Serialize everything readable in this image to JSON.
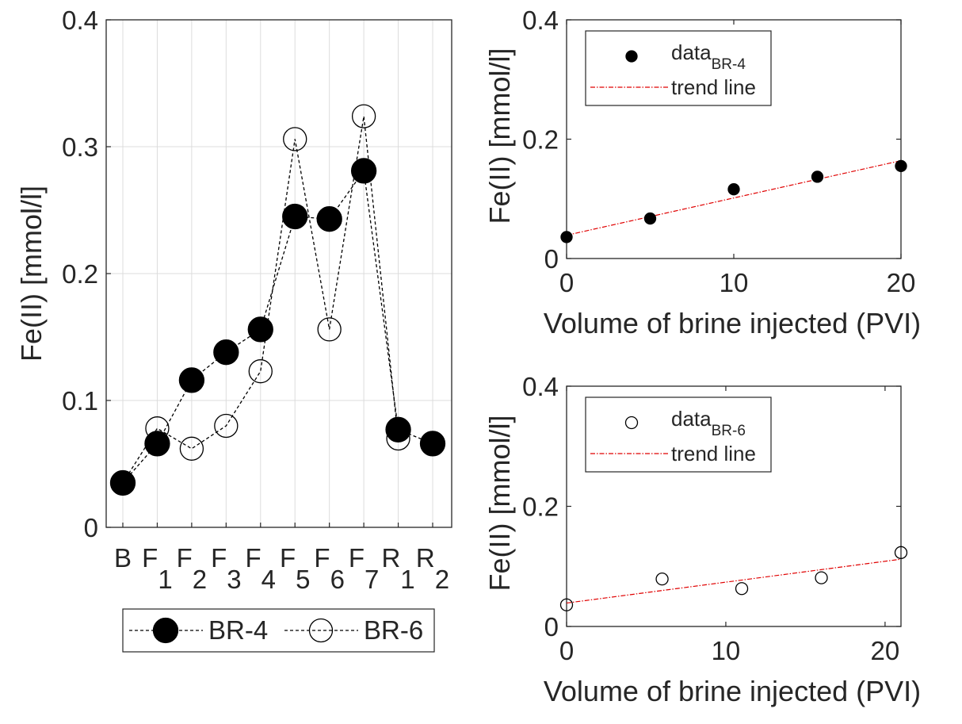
{
  "chart_data": [
    {
      "type": "line",
      "panel": "left",
      "title": "",
      "xlabel": "",
      "ylabel": "Fe(II) [mmol/l]",
      "ylim": [
        0,
        0.4
      ],
      "yticks": [
        "0",
        "0.1",
        "0.2",
        "0.3",
        "0.4"
      ],
      "grid": true,
      "categories": [
        {
          "base": "B",
          "sub": ""
        },
        {
          "base": "F",
          "sub": "1"
        },
        {
          "base": "F",
          "sub": "2"
        },
        {
          "base": "F",
          "sub": "3"
        },
        {
          "base": "F",
          "sub": "4"
        },
        {
          "base": "F",
          "sub": "5"
        },
        {
          "base": "F",
          "sub": "6"
        },
        {
          "base": "F",
          "sub": "7"
        },
        {
          "base": "R",
          "sub": "1"
        },
        {
          "base": "R",
          "sub": "2"
        }
      ],
      "series": [
        {
          "name": "BR-4",
          "marker": "filled-circle",
          "values": [
            0.035,
            0.066,
            0.116,
            0.138,
            0.156,
            0.245,
            0.243,
            0.281,
            0.077,
            0.066
          ]
        },
        {
          "name": "BR-6",
          "marker": "open-circle",
          "values": [
            0.035,
            0.078,
            0.062,
            0.08,
            0.123,
            0.306,
            0.156,
            0.324,
            0.07,
            null
          ]
        }
      ],
      "legend_position": "bottom"
    },
    {
      "type": "scatter",
      "panel": "top-right",
      "xlabel": "Volume of brine injected (PVI)",
      "ylabel": "Fe(II) [mmol/l]",
      "xlim": [
        0,
        20
      ],
      "ylim": [
        0,
        0.4
      ],
      "xticks": [
        "0",
        "10",
        "20"
      ],
      "yticks": [
        "0",
        "0.2",
        "0.4"
      ],
      "grid": false,
      "series": [
        {
          "name": "data",
          "name_sub": "BR-4",
          "marker": "filled-circle",
          "x": [
            0,
            5,
            10,
            15,
            20
          ],
          "y": [
            0.036,
            0.067,
            0.116,
            0.137,
            0.155
          ]
        },
        {
          "name": "trend line",
          "style": "red-dashdot",
          "x": [
            0,
            20
          ],
          "y": [
            0.039,
            0.164
          ]
        }
      ],
      "legend_position": "top-left"
    },
    {
      "type": "scatter",
      "panel": "bottom-right",
      "xlabel": "Volume of brine injected (PVI)",
      "ylabel": "Fe(II) [mmol/l]",
      "xlim": [
        0,
        21
      ],
      "ylim": [
        0,
        0.4
      ],
      "xticks": [
        "0",
        "10",
        "20"
      ],
      "yticks": [
        "0",
        "0.2",
        "0.4"
      ],
      "grid": false,
      "series": [
        {
          "name": "data",
          "name_sub": "BR-6",
          "marker": "open-circle",
          "x": [
            0,
            6,
            11,
            16,
            21
          ],
          "y": [
            0.036,
            0.079,
            0.063,
            0.081,
            0.123
          ]
        },
        {
          "name": "trend line",
          "style": "red-dashdot",
          "x": [
            0,
            21
          ],
          "y": [
            0.039,
            0.112
          ]
        }
      ],
      "legend_position": "top-left"
    }
  ]
}
